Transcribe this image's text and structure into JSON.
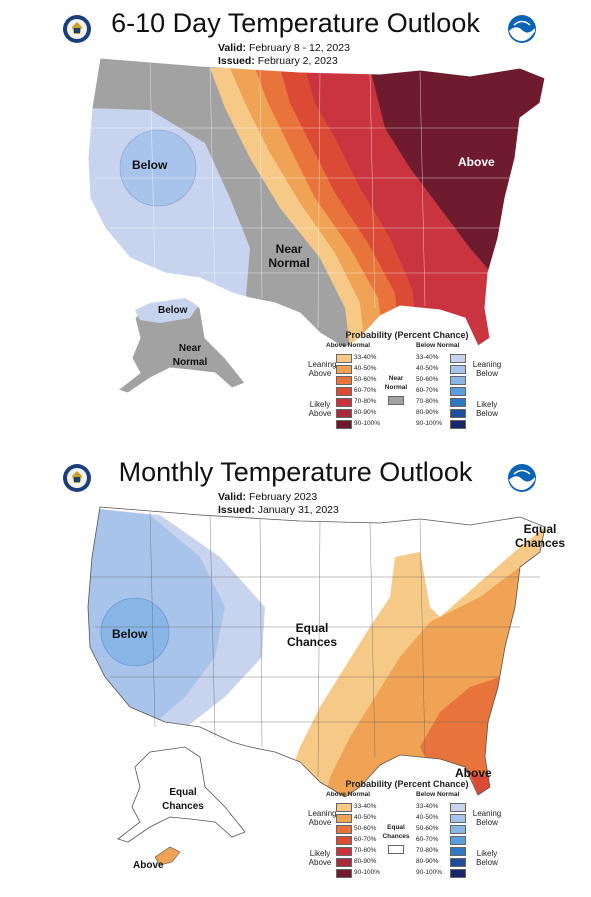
{
  "panels": [
    {
      "title": "6-10 Day Temperature Outlook",
      "valid_label": "Valid:",
      "valid_value": "February 8 - 12, 2023",
      "issued_label": "Issued:",
      "issued_value": "February 2, 2023",
      "map_labels": [
        "Below",
        "Near Normal",
        "Above",
        "Below",
        "Near Normal"
      ],
      "legend": {
        "title": "Probability (Percent Chance)",
        "above_header": "Above Normal",
        "below_header": "Below Normal",
        "middle_label": "Near Normal",
        "leaning_above": "Leaning Above",
        "likely_above": "Likely Above",
        "leaning_below": "Leaning Below",
        "likely_below": "Likely Below",
        "ranges": [
          "33-40%",
          "40-50%",
          "50-60%",
          "60-70%",
          "70-80%",
          "80-90%",
          "90-100%"
        ]
      }
    },
    {
      "title": "Monthly Temperature Outlook",
      "valid_label": "Valid:",
      "valid_value": "February 2023",
      "issued_label": "Issued:",
      "issued_value": "January 31, 2023",
      "map_labels": [
        "Below",
        "Equal Chances",
        "Equal Chances",
        "Above",
        "Equal Chances",
        "Above"
      ],
      "legend": {
        "title": "Probability (Percent Chance)",
        "above_header": "Above Normal",
        "below_header": "Below Normal",
        "middle_label": "Equal Chances",
        "leaning_above": "Leaning Above",
        "likely_above": "Likely Above",
        "leaning_below": "Leaning Below",
        "likely_below": "Likely Below",
        "ranges": [
          "33-40%",
          "40-50%",
          "50-60%",
          "60-70%",
          "70-80%",
          "80-90%",
          "90-100%"
        ]
      }
    }
  ],
  "colors": {
    "above_scale": [
      "#f7c987",
      "#f0a255",
      "#e8743b",
      "#db4a35",
      "#c9343e",
      "#a62a3c",
      "#6e1c2d"
    ],
    "below_scale": [
      "#c8d4ee",
      "#a9c4ea",
      "#88b6e6",
      "#5a9fd9",
      "#2f78c4",
      "#1d4e9a",
      "#18276b"
    ],
    "near_normal": "#a2a2a2",
    "equal_chances": "#ffffff"
  }
}
